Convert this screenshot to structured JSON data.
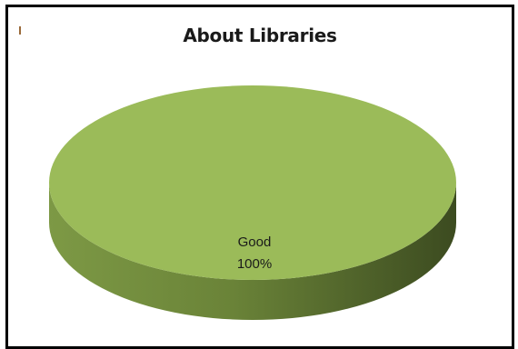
{
  "chart_data": {
    "type": "pie",
    "title": "About Libraries",
    "style": "3d",
    "legend": "none",
    "slices": [
      {
        "label": "Good",
        "value": 100,
        "percent_label": "100%",
        "color": "#9bbb59"
      }
    ]
  }
}
